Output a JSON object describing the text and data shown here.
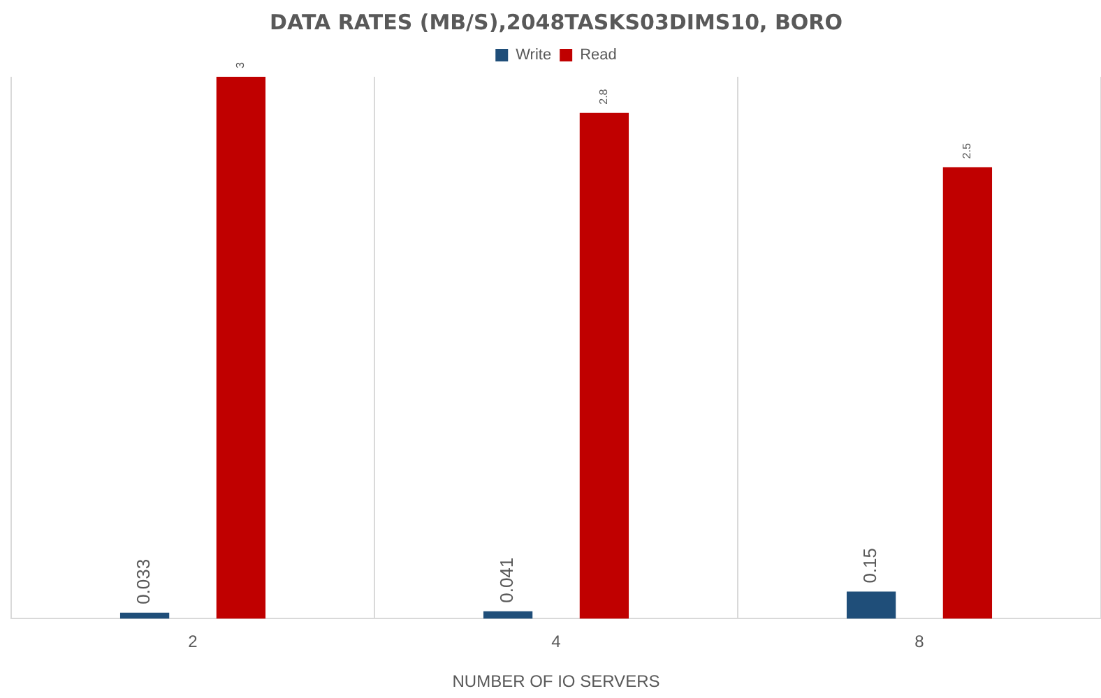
{
  "chart_data": {
    "type": "bar",
    "title": "DATA RATES (MB/S),2048TASKS03DIMS10, BORO",
    "xlabel": "NUMBER OF IO SERVERS",
    "categories": [
      "2",
      "4",
      "8"
    ],
    "series": [
      {
        "name": "Write",
        "color": "#1f4e79",
        "values": [
          0.033,
          0.041,
          0.15
        ]
      },
      {
        "name": "Read",
        "color": "#c00000",
        "values": [
          3,
          2.8,
          2.5
        ]
      }
    ],
    "data_labels": true,
    "grid": "x",
    "legend": "top"
  }
}
